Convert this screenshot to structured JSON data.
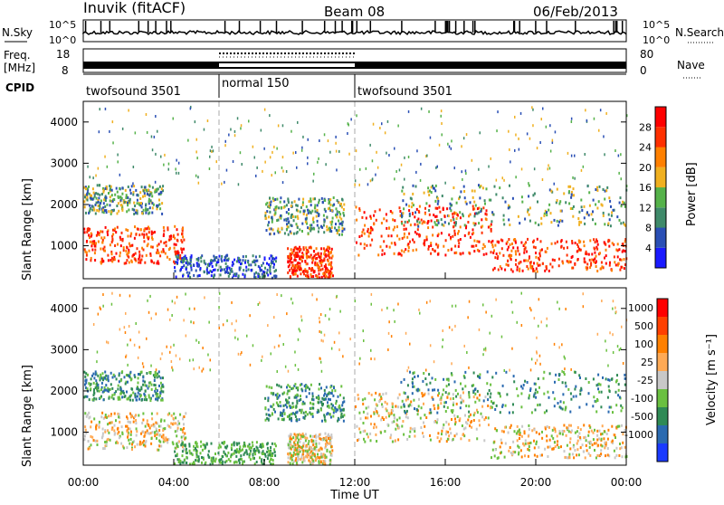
{
  "header": {
    "station": "Inuvik (fitACF)",
    "beam": "Beam 08",
    "date": "06/Feb/2013"
  },
  "panels": {
    "nsky": {
      "label": "N.Sky",
      "right_label": "N.Search",
      "ticks_left": [
        "10^5",
        "10^0"
      ],
      "ticks_right": [
        "10^5",
        "10^0"
      ]
    },
    "freq": {
      "label_line1": "Freq.",
      "label_line2": "[MHz]",
      "ticks_left": [
        "18",
        "8"
      ],
      "ticks_right": [
        "80",
        "0"
      ],
      "right_label": "Nave"
    },
    "cpid": {
      "label": "CPID",
      "segments": [
        {
          "name": "twofsound 3501",
          "start_h": 0,
          "end_h": 6
        },
        {
          "name": "normal 150",
          "start_h": 6,
          "end_h": 12
        },
        {
          "name": "twofsound 3501",
          "start_h": 12,
          "end_h": 24
        }
      ]
    }
  },
  "chart_data": [
    {
      "type": "heatmap",
      "name": "power",
      "ylabel": "Slant Range [km]",
      "ylim": [
        200,
        4500
      ],
      "yticks": [
        "1000",
        "2000",
        "3000",
        "4000"
      ],
      "xlim_hours": [
        0,
        24
      ],
      "colorbar_label": "Power [dB]",
      "colorbar_ticks": [
        "4",
        "8",
        "12",
        "16",
        "20",
        "24",
        "28"
      ],
      "colors": [
        "#1a1aff",
        "#2a4fb5",
        "#3f8a6a",
        "#55b24a",
        "#f0b020",
        "#ff8000",
        "#ff3000",
        "#ff0000"
      ]
    },
    {
      "type": "heatmap",
      "name": "velocity",
      "ylabel": "Slant Range [km]",
      "ylim": [
        200,
        4500
      ],
      "yticks": [
        "1000",
        "2000",
        "3000",
        "4000"
      ],
      "xlim_hours": [
        0,
        24
      ],
      "colorbar_label": "Velocity [m s⁻¹]",
      "colorbar_ticks": [
        "1000",
        "500",
        "100",
        "25",
        "-25",
        "-100",
        "-500",
        "-1000"
      ],
      "colors": [
        "#1a3aff",
        "#2a6ab0",
        "#2f8a55",
        "#6ac040",
        "#c8c8c8",
        "#ffaa55",
        "#ff8000",
        "#ff4000",
        "#ff0000"
      ]
    }
  ],
  "xaxis": {
    "label": "Time UT",
    "ticks": [
      "00:00",
      "04:00",
      "08:00",
      "12:00",
      "16:00",
      "20:00",
      "00:00"
    ]
  }
}
